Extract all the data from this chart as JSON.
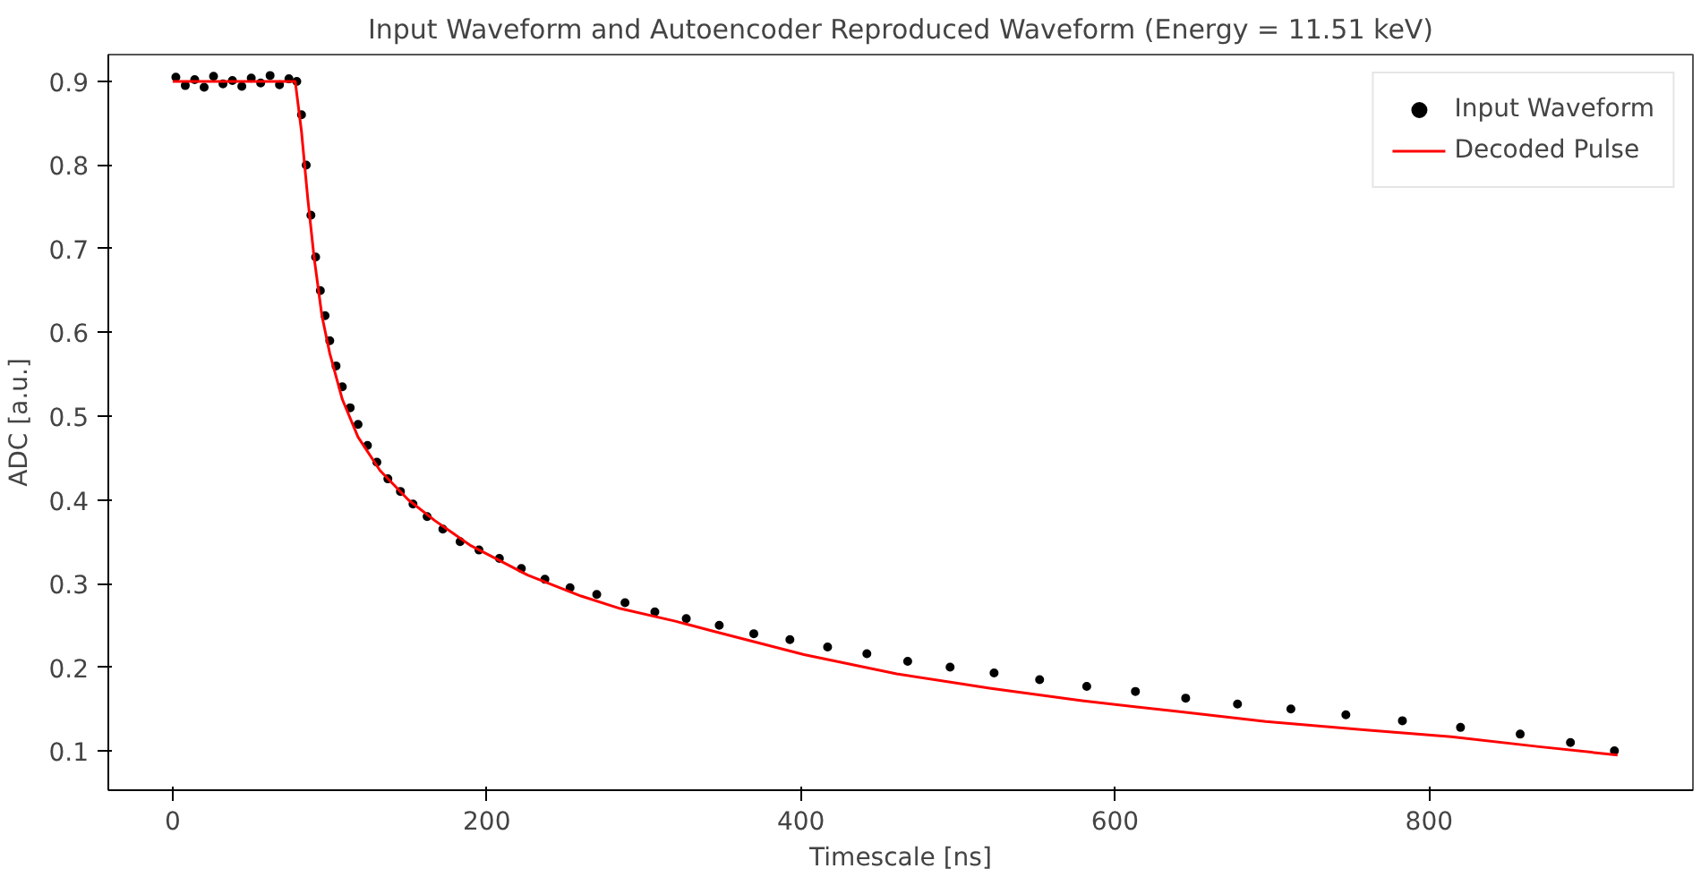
{
  "chart_data": {
    "type": "line",
    "title": "Input Waveform and Autoencoder Reproduced Waveform (Energy = 11.51 keV)",
    "xlabel": "Timescale [ns]",
    "ylabel": "ADC [a.u.]",
    "xlim": [
      -41,
      968
    ],
    "ylim": [
      0.053,
      0.932
    ],
    "xticks": [
      0,
      200,
      400,
      600,
      800
    ],
    "yticks": [
      0.1,
      0.2,
      0.3,
      0.4,
      0.5,
      0.6,
      0.7,
      0.8,
      0.9
    ],
    "grid": false,
    "legend": "top right",
    "series": [
      {
        "name": "Input Waveform",
        "type": "scatter",
        "marker": "circle",
        "color": "#000000",
        "x": [
          2,
          8,
          14,
          20,
          26,
          32,
          38,
          44,
          50,
          56,
          62,
          68,
          74,
          79,
          82,
          85,
          88,
          91,
          94,
          97,
          100,
          104,
          108,
          113,
          118,
          124,
          130,
          137,
          145,
          153,
          162,
          172,
          183,
          195,
          208,
          222,
          237,
          253,
          270,
          288,
          307,
          327,
          348,
          370,
          393,
          417,
          442,
          468,
          495,
          523,
          552,
          582,
          613,
          645,
          678,
          712,
          747,
          783,
          820,
          858,
          890,
          918
        ],
        "values": [
          0.905,
          0.895,
          0.902,
          0.893,
          0.906,
          0.897,
          0.901,
          0.894,
          0.904,
          0.898,
          0.907,
          0.896,
          0.903,
          0.9,
          0.86,
          0.8,
          0.74,
          0.69,
          0.65,
          0.62,
          0.59,
          0.56,
          0.535,
          0.51,
          0.49,
          0.465,
          0.445,
          0.425,
          0.41,
          0.395,
          0.38,
          0.365,
          0.35,
          0.34,
          0.33,
          0.318,
          0.305,
          0.295,
          0.287,
          0.277,
          0.266,
          0.258,
          0.25,
          0.24,
          0.233,
          0.224,
          0.216,
          0.207,
          0.2,
          0.193,
          0.185,
          0.177,
          0.171,
          0.163,
          0.156,
          0.15,
          0.143,
          0.136,
          0.128,
          0.12,
          0.11,
          0.1
        ]
      },
      {
        "name": "Decoded Pulse",
        "color": "#ff0000",
        "x": [
          0,
          40,
          78,
          82,
          86,
          90,
          95,
          100,
          108,
          118,
          132,
          150,
          167,
          190,
          226,
          260,
          285,
          320,
          344,
          402,
          461,
          520,
          579,
          640,
          696,
          760,
          814,
          870,
          920
        ],
        "values": [
          0.9,
          0.9,
          0.9,
          0.84,
          0.76,
          0.69,
          0.62,
          0.575,
          0.52,
          0.475,
          0.435,
          0.4,
          0.375,
          0.345,
          0.31,
          0.285,
          0.27,
          0.255,
          0.243,
          0.215,
          0.192,
          0.175,
          0.16,
          0.147,
          0.135,
          0.125,
          0.117,
          0.105,
          0.095
        ]
      }
    ]
  }
}
